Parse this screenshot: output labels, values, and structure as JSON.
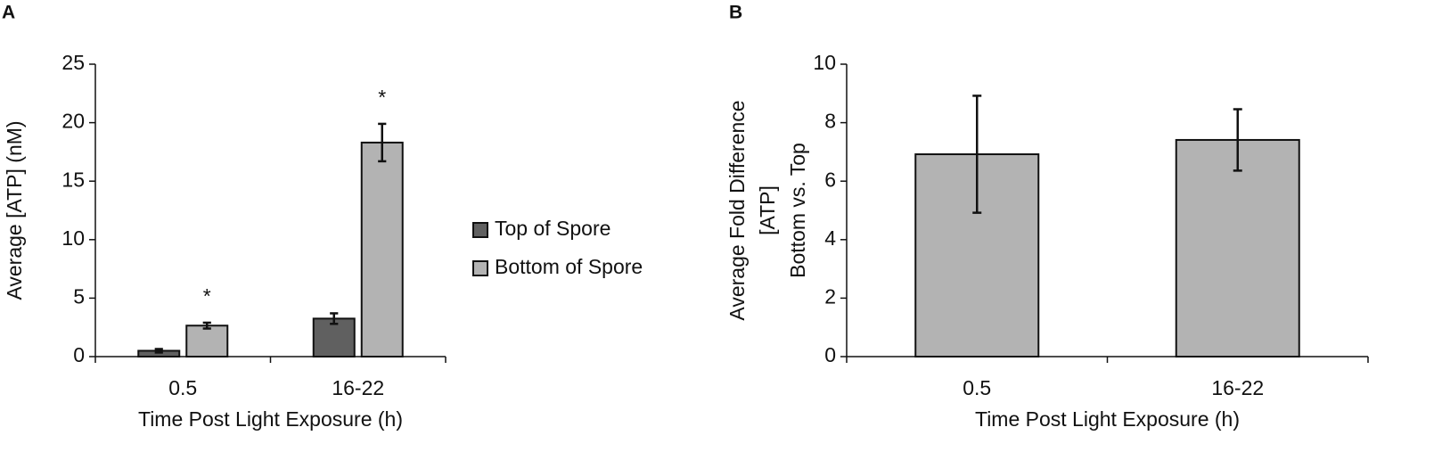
{
  "chart_data": [
    {
      "type": "bar",
      "panel_label": "A",
      "xlabel": "Time Post Light Exposure (h)",
      "ylabel": [
        "Average [ATP] (nM)"
      ],
      "categories": [
        "0.5",
        "16-22"
      ],
      "series": [
        {
          "name": "Top of Spore",
          "color": "#606060",
          "values": [
            0.5,
            3.25
          ],
          "errors": [
            0.15,
            0.45
          ]
        },
        {
          "name": "Bottom of Spore",
          "color": "#b3b3b3",
          "values": [
            2.65,
            18.3
          ],
          "errors": [
            0.25,
            1.6
          ],
          "value_notes": [
            "*",
            "*"
          ]
        }
      ],
      "ylim": [
        0,
        25
      ],
      "yticks": [
        0,
        5,
        10,
        15,
        20,
        25
      ],
      "legend": "right"
    },
    {
      "type": "bar",
      "panel_label": "B",
      "xlabel": "Time Post Light Exposure (h)",
      "ylabel": [
        "Average Fold Difference",
        "[ATP]",
        "Bottom vs. Top"
      ],
      "categories": [
        "0.5",
        "16-22"
      ],
      "series": [
        {
          "color": "#b3b3b3",
          "values": [
            6.92,
            7.41
          ],
          "errors": [
            2.0,
            1.05
          ]
        }
      ],
      "ylim": [
        0,
        10
      ],
      "yticks": [
        0,
        2,
        4,
        6,
        8,
        10
      ]
    }
  ]
}
